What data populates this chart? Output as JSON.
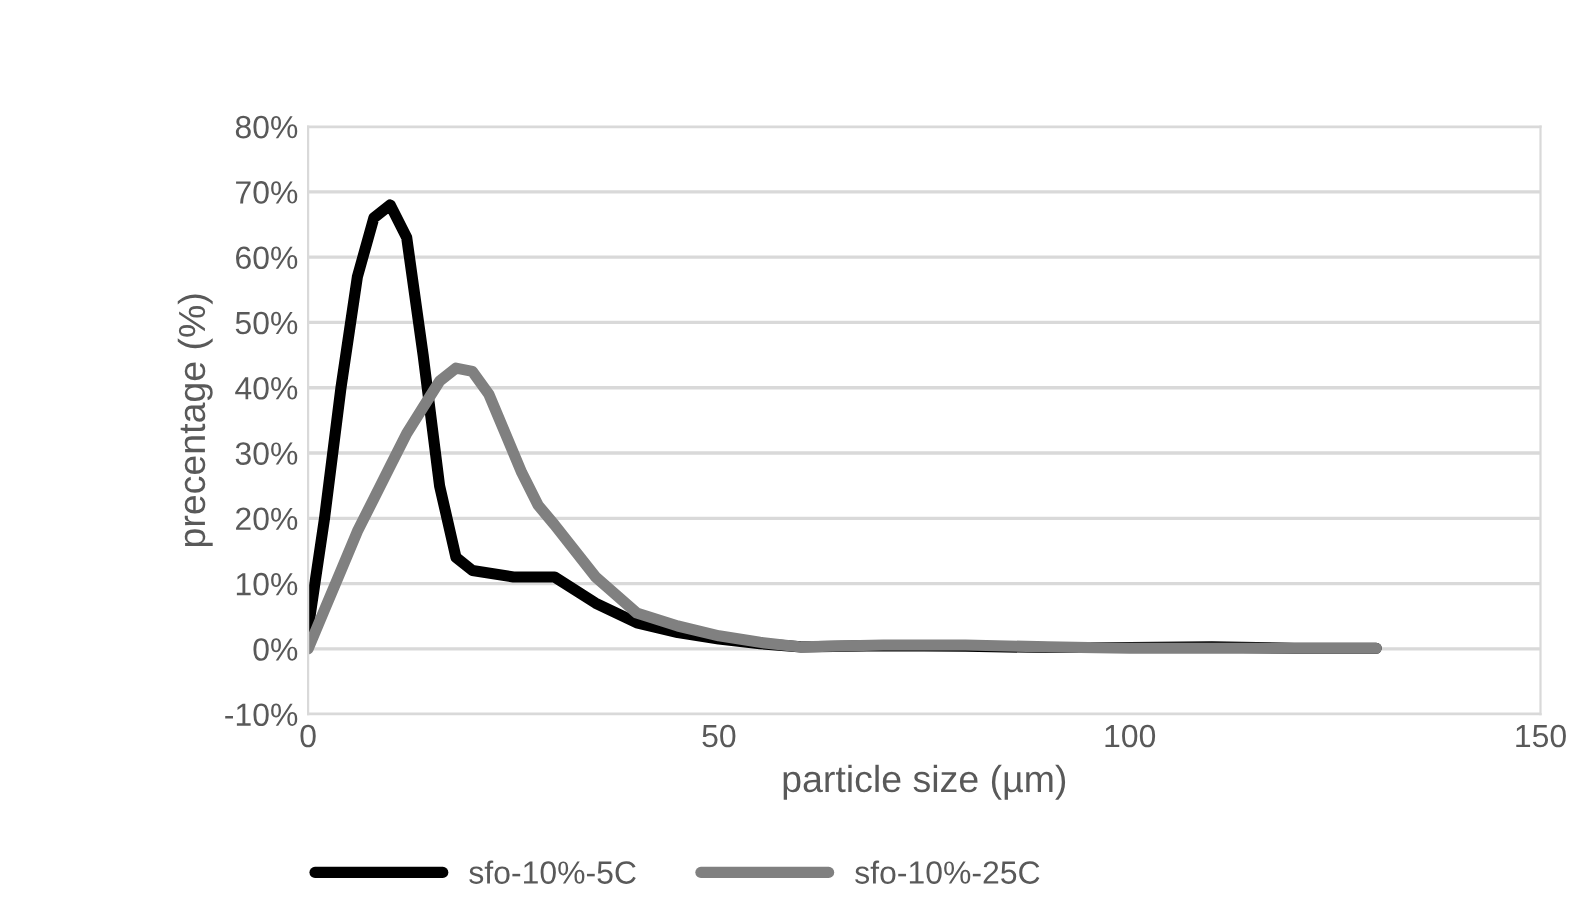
{
  "chart_data": {
    "type": "line",
    "xlabel": "particle size (µm)",
    "ylabel": "precentage (%)",
    "series": [
      {
        "name": "sfo-10%-5C",
        "color": "#000000",
        "x": [
          0,
          2,
          4,
          6,
          8,
          10,
          12,
          14,
          16,
          18,
          20,
          25,
          30,
          35,
          40,
          45,
          50,
          55,
          60,
          70,
          80,
          90,
          100,
          110,
          120,
          130
        ],
        "values": [
          3,
          20,
          40,
          57,
          66,
          68,
          63,
          45,
          25,
          14,
          12,
          11,
          11,
          7,
          4,
          2.5,
          1.5,
          0.8,
          0.3,
          0.5,
          0.4,
          0.2,
          0.2,
          0.3,
          0.1,
          0.1
        ]
      },
      {
        "name": "sfo-10%-25C",
        "color": "#808080",
        "x": [
          0,
          2,
          4,
          6,
          8,
          10,
          12,
          14,
          16,
          18,
          20,
          22,
          24,
          26,
          28,
          30,
          35,
          40,
          45,
          50,
          55,
          60,
          70,
          80,
          90,
          100,
          110,
          120,
          130
        ],
        "values": [
          0,
          6,
          12,
          18,
          23,
          28,
          33,
          37,
          41,
          43,
          42.5,
          39,
          33,
          27,
          22,
          19,
          11,
          5.5,
          3.5,
          2,
          1,
          0.3,
          0.6,
          0.6,
          0.3,
          0.1,
          0.1,
          0.1,
          0.1
        ]
      }
    ],
    "xlim": [
      0,
      150
    ],
    "xticks": [
      0,
      50,
      100,
      150
    ],
    "ylim": [
      -10,
      80
    ],
    "yticks": [
      {
        "value": -10,
        "label": "-10%"
      },
      {
        "value": 0,
        "label": "0%"
      },
      {
        "value": 10,
        "label": "10%"
      },
      {
        "value": 20,
        "label": "20%"
      },
      {
        "value": 30,
        "label": "30%"
      },
      {
        "value": 40,
        "label": "40%"
      },
      {
        "value": 50,
        "label": "50%"
      },
      {
        "value": 60,
        "label": "60%"
      },
      {
        "value": 70,
        "label": "70%"
      },
      {
        "value": 80,
        "label": "80%"
      }
    ],
    "grid": "y",
    "legend": "bottom",
    "marker": "none",
    "line_style": "solid"
  }
}
